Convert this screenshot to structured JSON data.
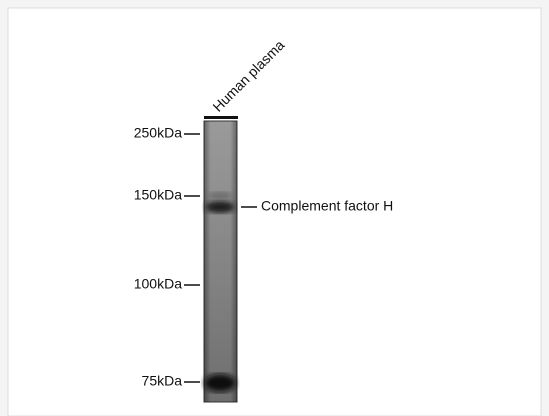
{
  "lane_label": "Human plasma",
  "markers": [
    {
      "label": "250kDa"
    },
    {
      "label": "150kDa"
    },
    {
      "label": "100kDa"
    },
    {
      "label": "75kDa"
    }
  ],
  "band_label": "Complement factor H"
}
